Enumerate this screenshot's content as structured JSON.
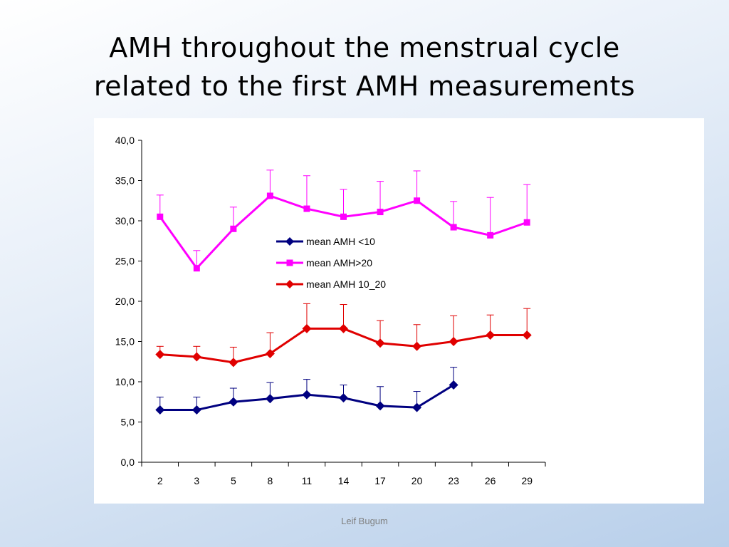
{
  "slide": {
    "title_line1": "AMH throughout the menstrual cycle",
    "title_line2": "related to the first AMH measurements",
    "footer": "Leif Bugum"
  },
  "colors": {
    "mean_amh_lt10": "#000080",
    "mean_amh_gt20": "#ff00ff",
    "mean_amh_10_20": "#e00000"
  },
  "chart_data": {
    "type": "line",
    "title": "",
    "xlabel": "",
    "ylabel": "",
    "categories": [
      "2",
      "3",
      "5",
      "8",
      "11",
      "14",
      "17",
      "20",
      "23",
      "26",
      "29"
    ],
    "ylim": [
      0,
      40
    ],
    "yticks": [
      "0,0",
      "5,0",
      "10,0",
      "15,0",
      "20,0",
      "25,0",
      "30,0",
      "35,0",
      "40,0"
    ],
    "grid": false,
    "legend_position": "center",
    "error_bars": "upper",
    "series": [
      {
        "name": "mean AMH <10",
        "color": "#000080",
        "marker": "diamond",
        "values": [
          6.5,
          6.5,
          7.5,
          7.9,
          8.4,
          8.0,
          7.0,
          6.8,
          9.6,
          null,
          null
        ],
        "error_upper": [
          8.1,
          8.1,
          9.2,
          9.9,
          10.3,
          9.6,
          9.4,
          8.8,
          11.8,
          null,
          null
        ]
      },
      {
        "name": "mean AMH>20",
        "color": "#ff00ff",
        "marker": "square",
        "values": [
          30.5,
          24.1,
          29.0,
          33.1,
          31.5,
          30.5,
          31.1,
          32.5,
          29.2,
          28.2,
          29.8
        ],
        "error_upper": [
          33.2,
          26.3,
          31.7,
          36.3,
          35.6,
          33.9,
          34.9,
          36.2,
          32.4,
          32.9,
          34.5
        ]
      },
      {
        "name": "mean AMH 10_20",
        "color": "#e00000",
        "marker": "diamond",
        "values": [
          13.4,
          13.1,
          12.4,
          13.5,
          16.6,
          16.6,
          14.8,
          14.4,
          15.0,
          15.8,
          15.8
        ],
        "error_upper": [
          14.4,
          14.4,
          14.3,
          16.1,
          19.7,
          19.6,
          17.6,
          17.1,
          18.2,
          18.3,
          19.1
        ]
      }
    ]
  }
}
